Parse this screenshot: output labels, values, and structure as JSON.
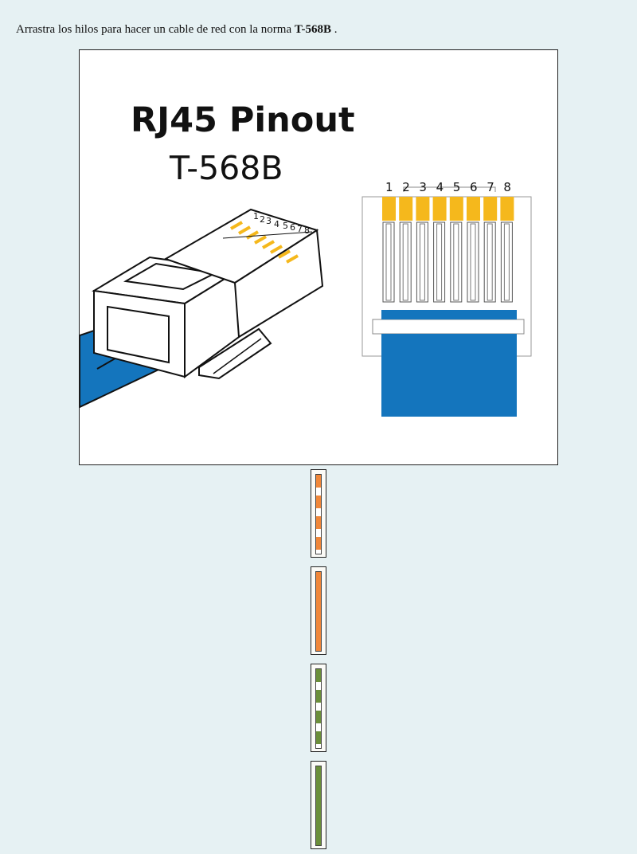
{
  "instruction": {
    "prefix": "Arrastra los hilos para hacer un cable de red con la norma ",
    "standard": "T-568B",
    "suffix": " ."
  },
  "diagram": {
    "title": "RJ45 Pinout",
    "subtitle": "T-568B",
    "pin_numbers": [
      "1",
      "2",
      "3",
      "4",
      "5",
      "6",
      "7",
      "8"
    ]
  },
  "colors": {
    "page_background": "#e6f1f3",
    "pin_gold": "#f5b81c",
    "cable_blue": "#1475bd",
    "orange": "#f0873a",
    "green": "#6b8f3a",
    "white": "#ffffff"
  },
  "wires": [
    {
      "name": "orange-white",
      "pattern": "striped",
      "color": "#f0873a"
    },
    {
      "name": "orange",
      "pattern": "solid",
      "color": "#f0873a"
    },
    {
      "name": "green-white",
      "pattern": "striped",
      "color": "#6b8f3a"
    },
    {
      "name": "green",
      "pattern": "solid",
      "color": "#6b8f3a"
    }
  ]
}
